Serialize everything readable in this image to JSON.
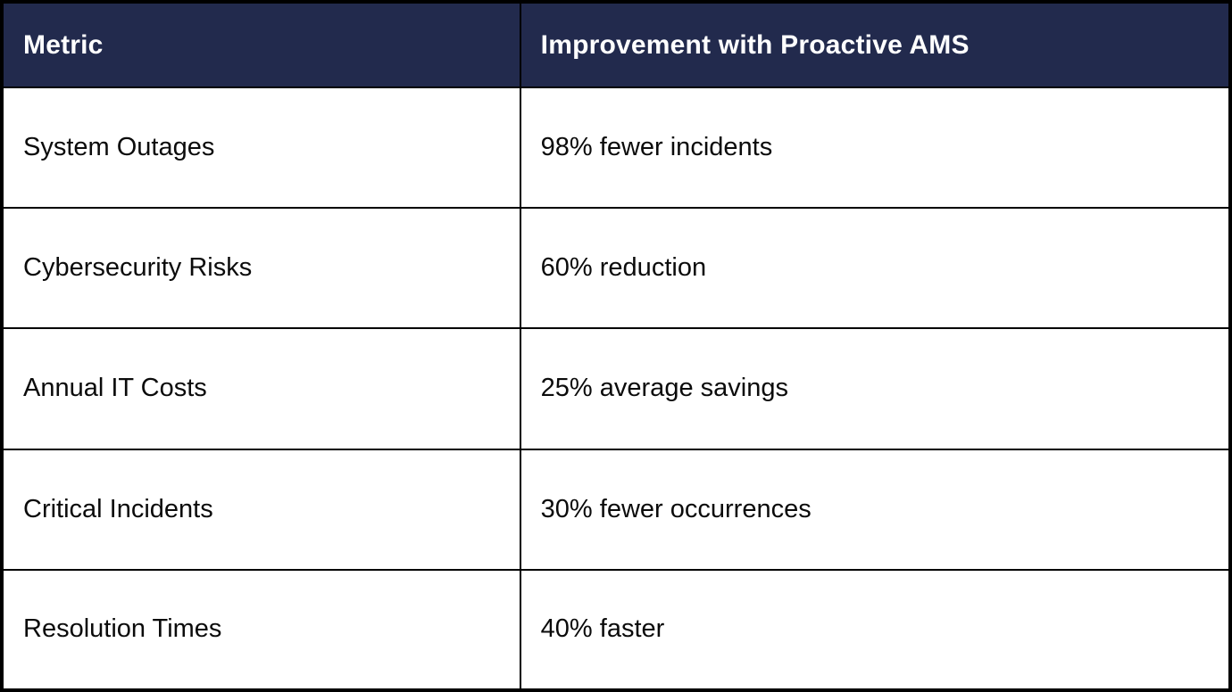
{
  "table": {
    "columns": [
      {
        "label": "Metric"
      },
      {
        "label": "Improvement with Proactive AMS"
      }
    ],
    "rows": [
      {
        "metric": "System Outages",
        "improvement": "98% fewer incidents"
      },
      {
        "metric": "Cybersecurity Risks",
        "improvement": "60% reduction"
      },
      {
        "metric": "Annual IT Costs",
        "improvement": "25% average savings"
      },
      {
        "metric": "Critical Incidents",
        "improvement": "30% fewer occurrences"
      },
      {
        "metric": "Resolution Times",
        "improvement": "40% faster"
      }
    ],
    "colors": {
      "header_bg": "#222A4D",
      "header_text": "#FFFFFF",
      "body_bg": "#FFFFFF",
      "body_text": "#0B0B0B",
      "border": "#000000"
    }
  }
}
